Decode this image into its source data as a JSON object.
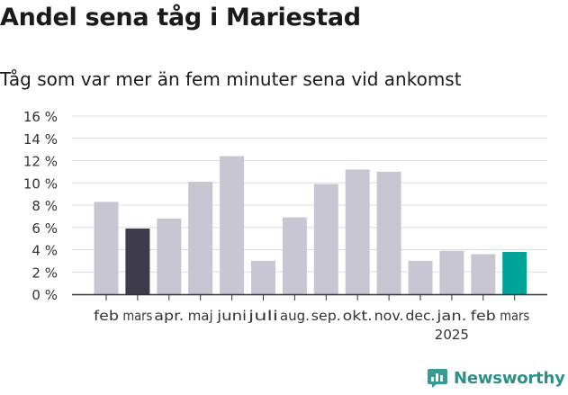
{
  "title": "Andel sena tåg i Mariestad",
  "subtitle": "Tåg som var mer än fem minuter sena vid ankomst",
  "brand": {
    "name": "Newsworthy",
    "icon": "newsworthy-logo-icon"
  },
  "colors": {
    "default_bar": "#c8c6d3",
    "highlight_prev": "#3e3c4a",
    "highlight_current": "#00a398",
    "grid": "#dddddd",
    "axis": "#333333"
  },
  "chart_data": {
    "type": "bar",
    "title": "Andel sena tåg i Mariestad",
    "subtitle": "Tåg som var mer än fem minuter sena vid ankomst",
    "xlabel": "",
    "ylabel": "",
    "categories": [
      "feb",
      "mars",
      "apr.",
      "maj",
      "juni",
      "juli",
      "aug.",
      "sep.",
      "okt.",
      "nov.",
      "dec.",
      "jan.",
      "feb",
      "mars"
    ],
    "year_label": "2025",
    "values": [
      8.3,
      5.9,
      6.8,
      10.1,
      12.4,
      3.0,
      6.9,
      9.9,
      11.2,
      11.0,
      3.0,
      3.9,
      3.6,
      3.8
    ],
    "highlight": {
      "1": "highlight_prev",
      "13": "highlight_current"
    },
    "ylim": [
      0,
      16
    ],
    "yticks": [
      0,
      2,
      4,
      6,
      8,
      10,
      12,
      14,
      16
    ],
    "ytick_suffix": " %",
    "grid": true
  }
}
